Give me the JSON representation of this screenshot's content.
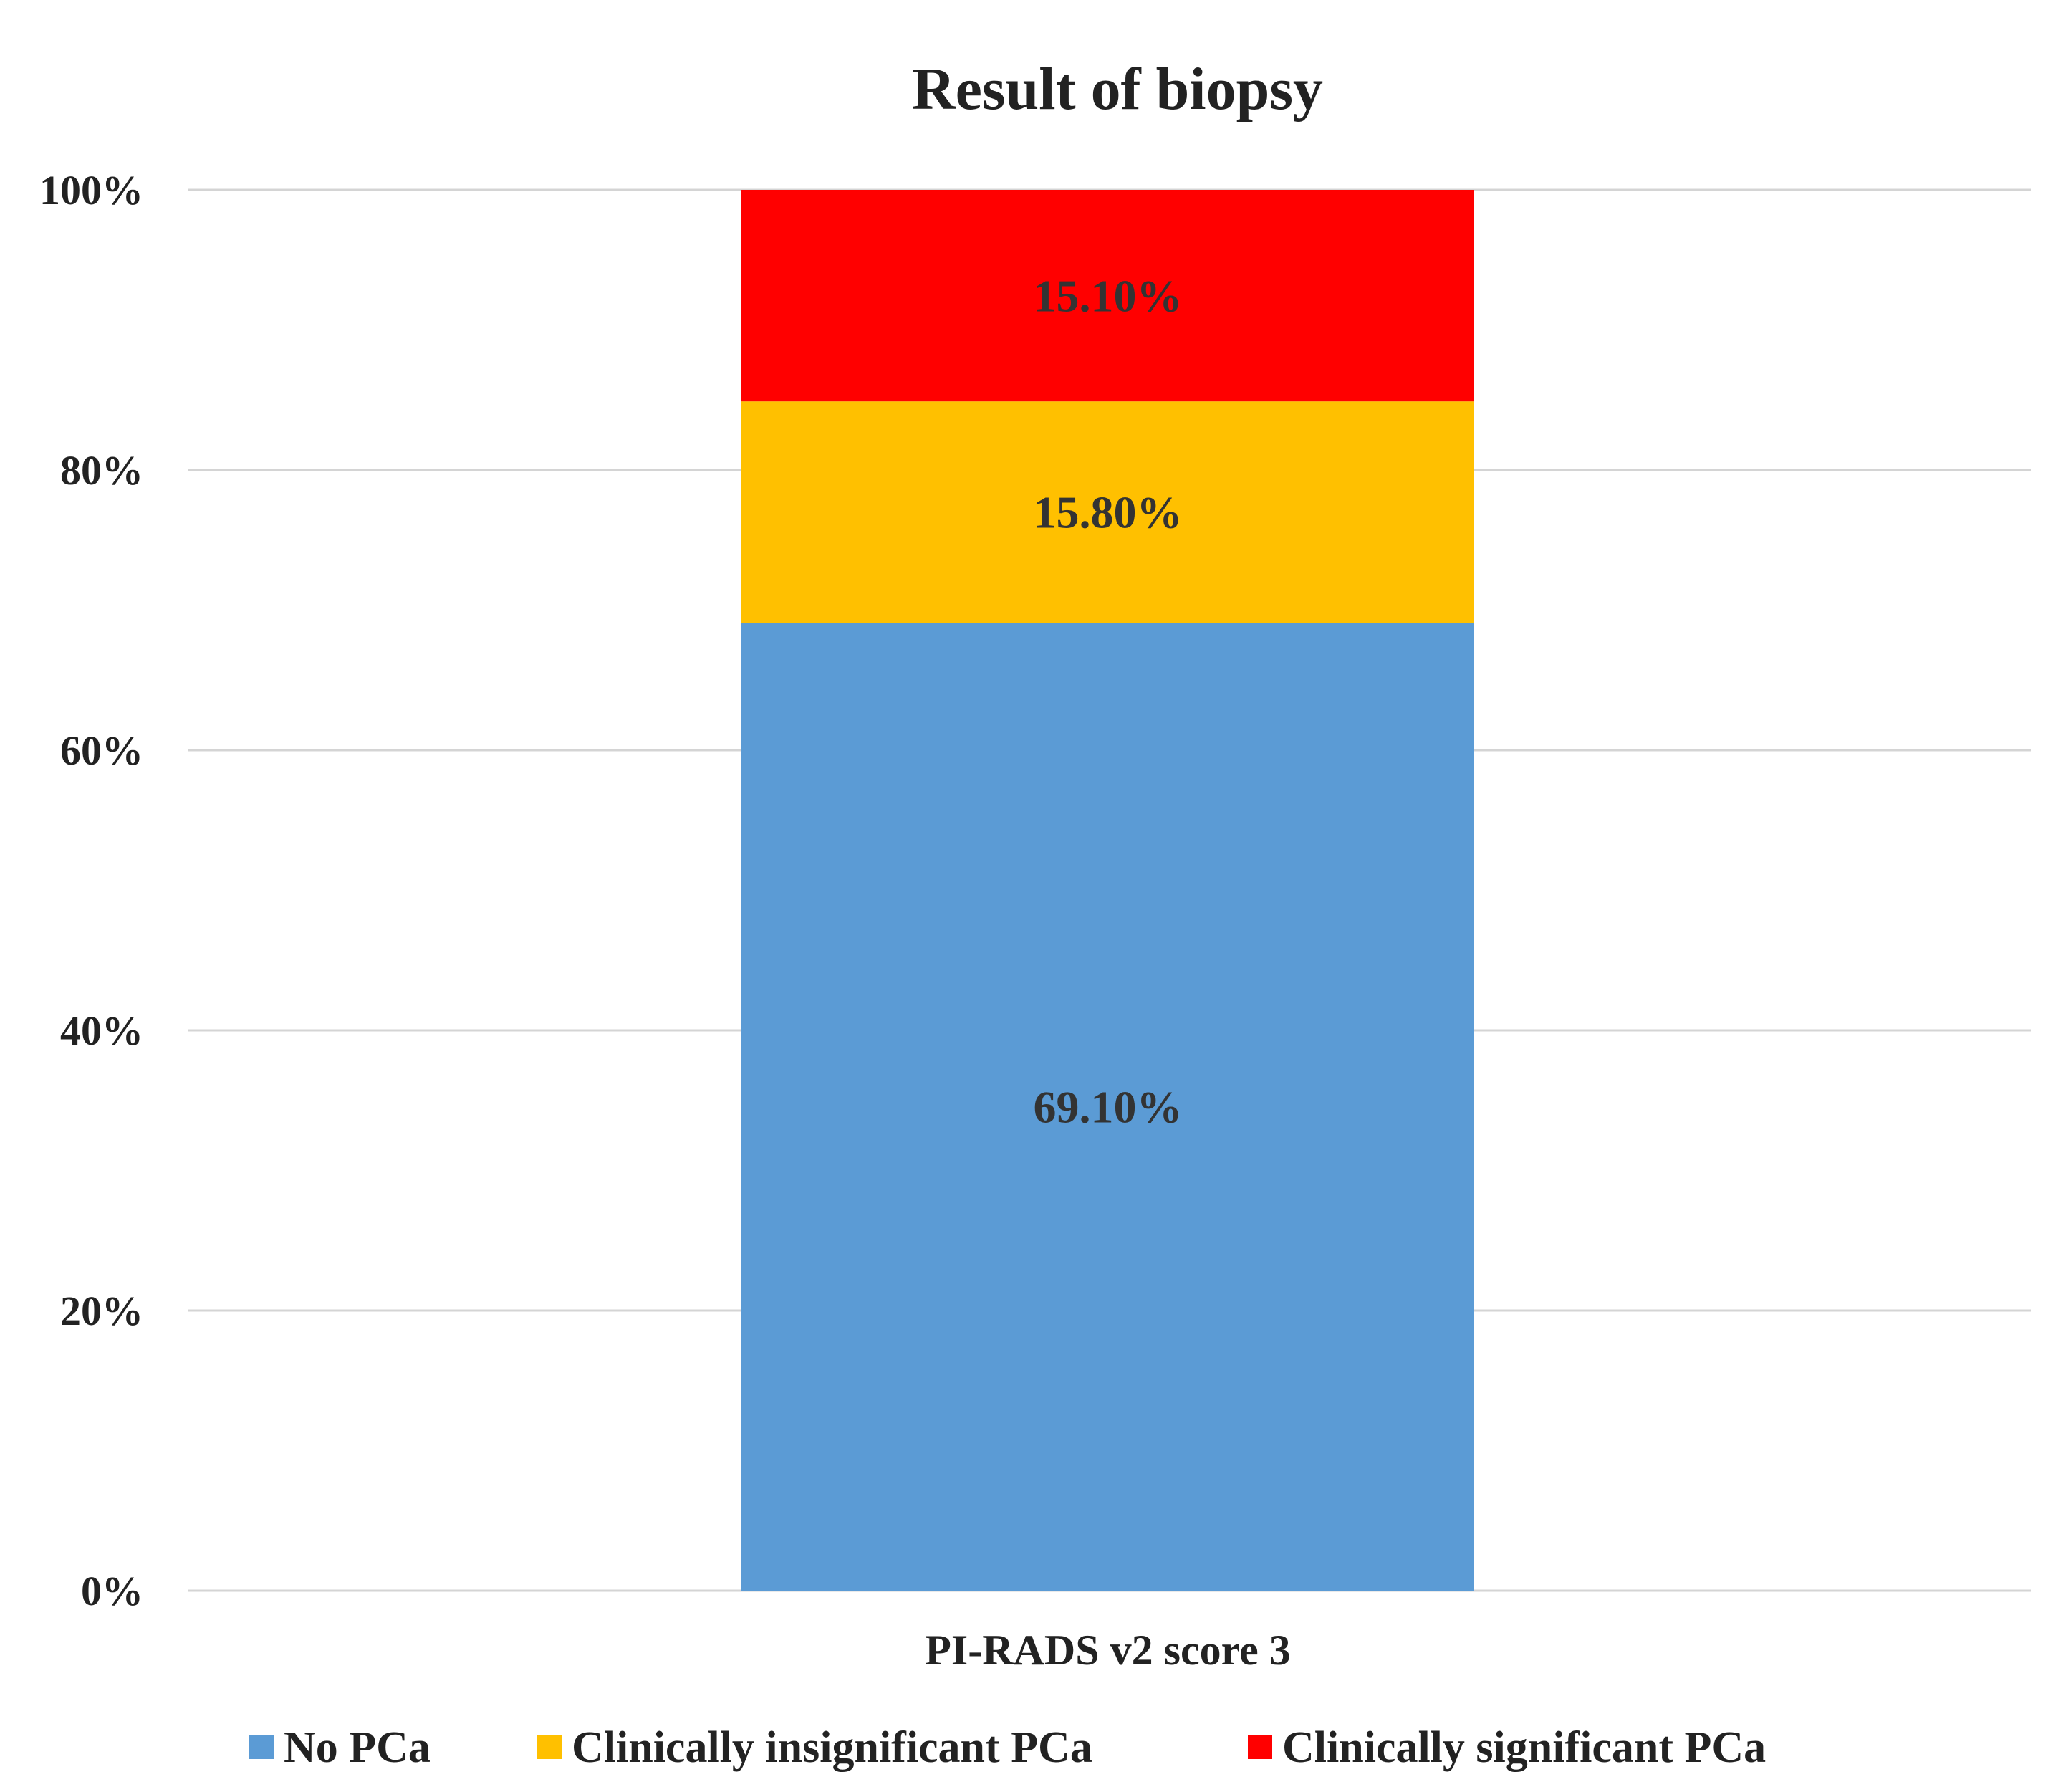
{
  "chart_data": {
    "type": "bar",
    "stacked": true,
    "title": "Result of biopsy",
    "xlabel": "",
    "ylabel": "",
    "categories": [
      "PI-RADS v2 score 3"
    ],
    "ylim": [
      0,
      100
    ],
    "yticks": [
      "0%",
      "20%",
      "40%",
      "60%",
      "80%",
      "100%"
    ],
    "grid": true,
    "legend_position": "bottom",
    "series": [
      {
        "name": "No PCa",
        "values": [
          69.1
        ],
        "label": "69.10%",
        "color": "#5b9bd5"
      },
      {
        "name": "Clinically insignificant PCa",
        "values": [
          15.8
        ],
        "label": "15.80%",
        "color": "#ffc000"
      },
      {
        "name": "Clinically significant PCa",
        "values": [
          15.1
        ],
        "label": "15.10%",
        "color": "#ff0000"
      }
    ]
  }
}
